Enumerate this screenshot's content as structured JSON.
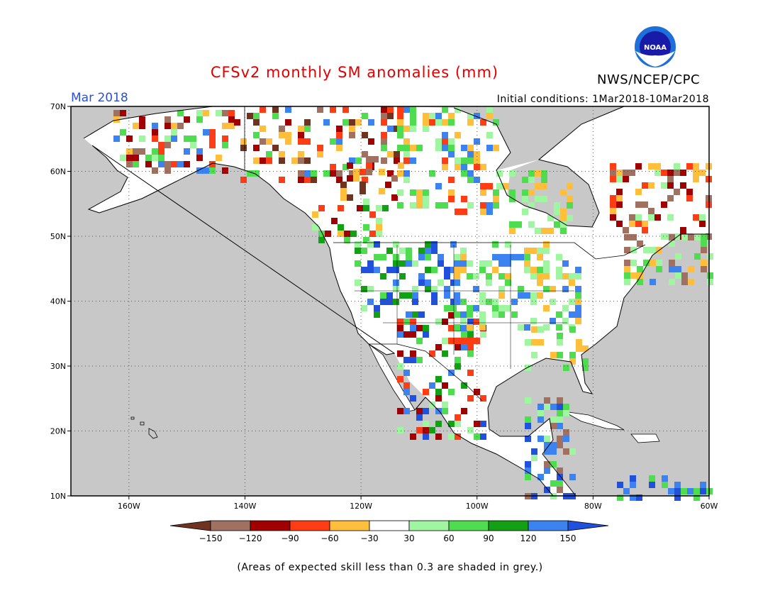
{
  "title": "CFSv2 monthly SM anomalies (mm)",
  "agency": "NWS/NCEP/CPC",
  "logo_text": "NOAA",
  "month_label": "Mar 2018",
  "initial_conditions": "Initial conditions: 1Mar2018-10Mar2018",
  "note": "(Areas of expected skill less than 0.3 are shaded in grey.)",
  "map": {
    "lon_ticks": [
      "160W",
      "140W",
      "120W",
      "100W",
      "80W",
      "60W"
    ],
    "lat_ticks": [
      "70N",
      "60N",
      "50N",
      "40N",
      "30N",
      "20N",
      "10N"
    ],
    "lon_range": [
      -170,
      -60
    ],
    "lat_range": [
      10,
      70
    ],
    "grey_color": "#c8c8c8"
  },
  "colorbar": {
    "labels": [
      "-150",
      "-120",
      "-90",
      "-60",
      "-30",
      "30",
      "60",
      "90",
      "120",
      "150"
    ],
    "colors": [
      "#6e3420",
      "#a07060",
      "#a00000",
      "#ff3c14",
      "#ffbe3c",
      "#ffffff",
      "#a0f5a0",
      "#50dc50",
      "#14a014",
      "#3c82f0",
      "#2050dc"
    ]
  }
}
